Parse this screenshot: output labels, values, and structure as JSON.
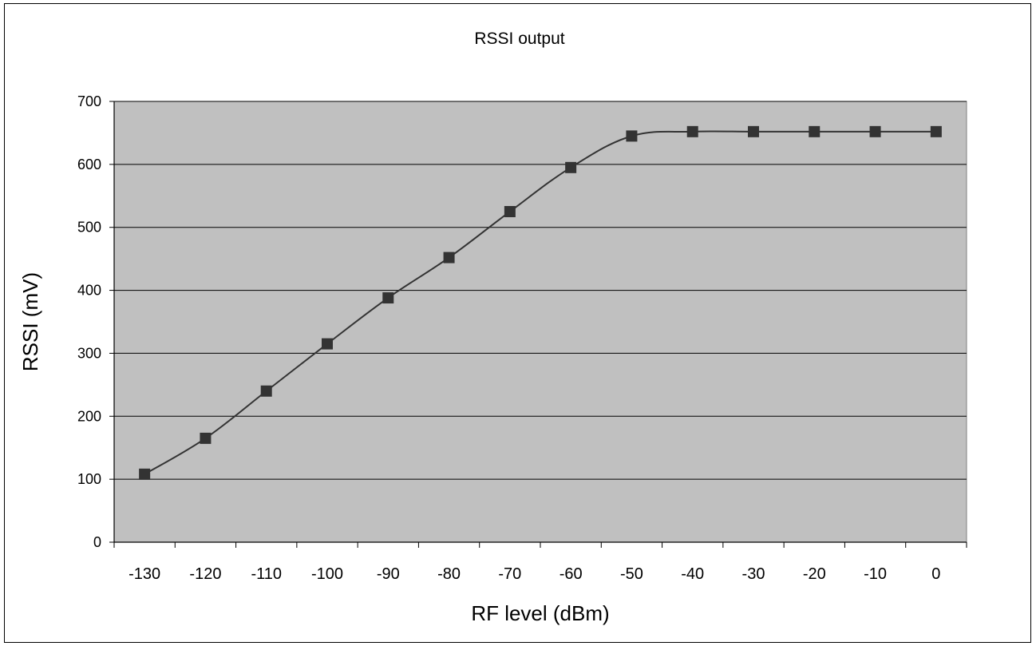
{
  "chart_data": {
    "type": "line",
    "title": "RSSI output",
    "xlabel": "RF level (dBm)",
    "ylabel": "RSSI (mV)",
    "x_ticks": [
      "-130",
      "-120",
      "-110",
      "-100",
      "-90",
      "-80",
      "-70",
      "-60",
      "-50",
      "-40",
      "-30",
      "-20",
      "-10",
      "0"
    ],
    "y_ticks": [
      "0",
      "100",
      "200",
      "300",
      "400",
      "500",
      "600",
      "700"
    ],
    "ylim": [
      0,
      700
    ],
    "grid": true,
    "plot_background": "#c0c0c0",
    "series": [
      {
        "color": "#333333",
        "marker": "square",
        "x": [
          -130,
          -120,
          -110,
          -100,
          -90,
          -80,
          -70,
          -60,
          -50,
          -40,
          -30,
          -20,
          -10,
          0
        ],
        "y": [
          108,
          165,
          240,
          315,
          388,
          452,
          525,
          595,
          645,
          652,
          652,
          652,
          652,
          652
        ]
      }
    ]
  }
}
